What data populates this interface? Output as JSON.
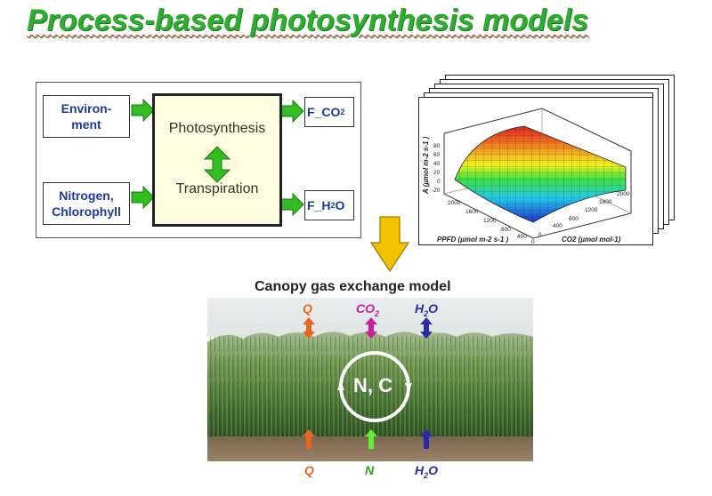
{
  "title": "Process-based photosynthesis models",
  "process": {
    "inputs": [
      {
        "label": "Environ-\nment"
      },
      {
        "label": "Nitrogen,\nChlorophyll"
      }
    ],
    "core": {
      "line1": "Photosynthesis",
      "line2": "Transpiration"
    },
    "outputs": [
      {
        "base": "F_CO",
        "sub": "2"
      },
      {
        "base": "F_H",
        "sub": "2",
        "tail": "O"
      }
    ]
  },
  "surface_plot": {
    "y_axis_label": "A (µmol m-2 s-1 )",
    "y_ticks": [
      "80",
      "60",
      "40",
      "20",
      "0",
      "-20"
    ],
    "ppfd_ticks": [
      "2000",
      "1600",
      "1200",
      "800",
      "400",
      "0"
    ],
    "co2_ticks": [
      "0",
      "400",
      "800",
      "1200",
      "1600",
      "2000"
    ],
    "ppfd_label": "PPFD (µmol m-2 s-1 )",
    "co2_label": "CO2 (µmol mol-1)"
  },
  "canopy": {
    "title": "Canopy gas exchange model",
    "top_labels": [
      {
        "base": "Q",
        "color": "#e8661e"
      },
      {
        "base": "CO",
        "sub": "2",
        "color": "#c8209a"
      },
      {
        "base": "H",
        "sub": "2",
        "tail": "O",
        "color": "#2a2aa8"
      }
    ],
    "bottom_labels": [
      {
        "base": "Q",
        "color": "#e8661e"
      },
      {
        "base": "N",
        "color": "#1fa81f"
      },
      {
        "base": "H",
        "sub": "2",
        "tail": "O",
        "color": "#2a2aa8"
      }
    ],
    "cycle_label": "N, C"
  },
  "colors": {
    "title": "#2eae2e",
    "arrow_green": "#33bb22",
    "arrow_yellow": "#f2c200",
    "q": "#e8661e",
    "co2": "#c8209a",
    "h2o": "#2a2aa8",
    "n": "#66ee33"
  }
}
